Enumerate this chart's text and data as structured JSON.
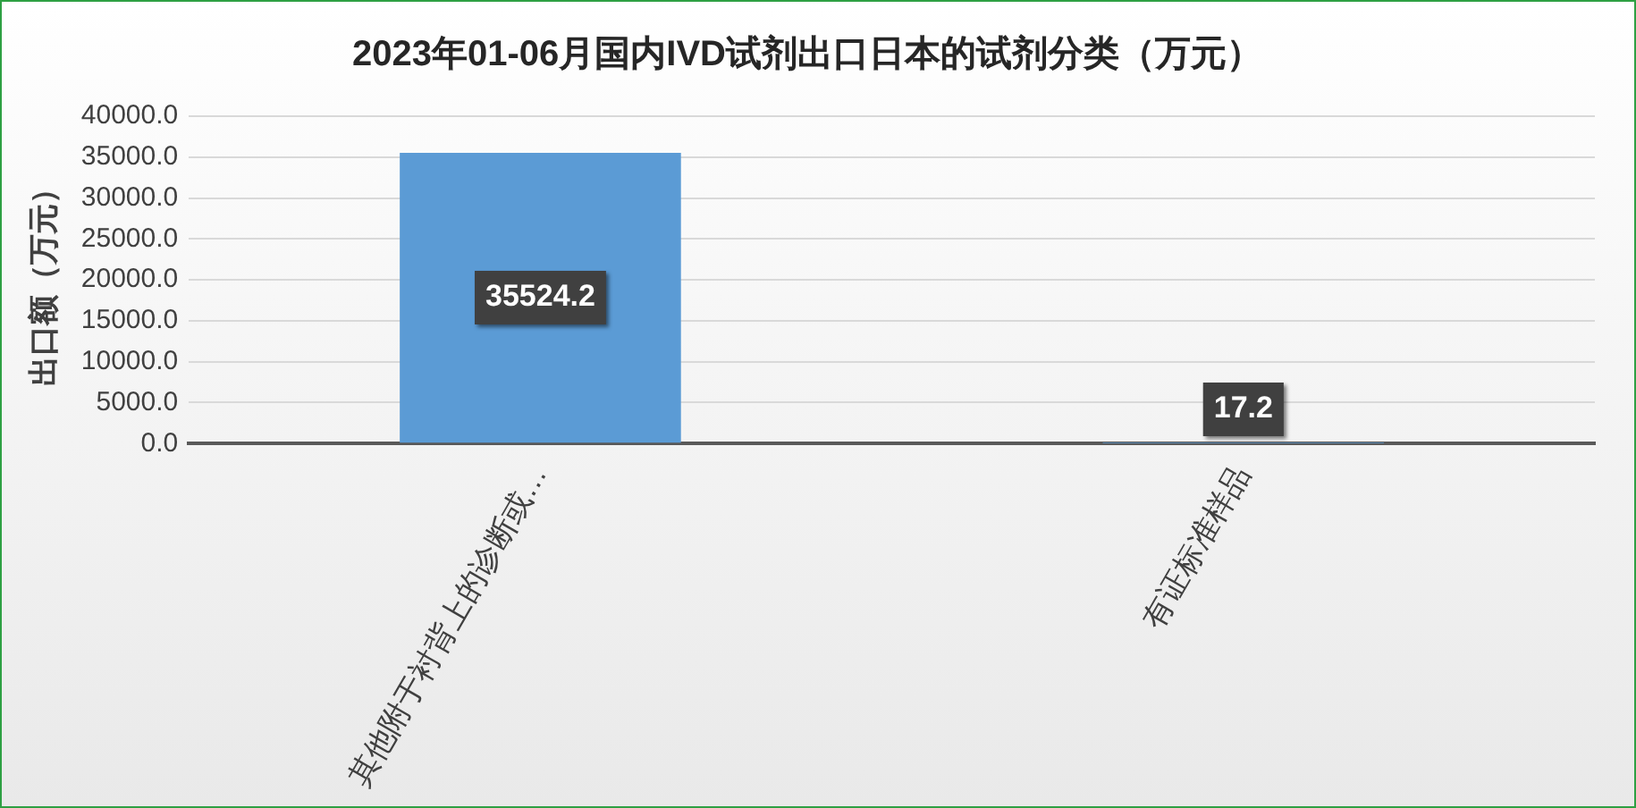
{
  "chart_data": {
    "type": "bar",
    "title": "2023年01-06月国内IVD试剂出口日本的试剂分类（万元）",
    "ylabel": "出口额（万元）",
    "categories": [
      "其他附于衬背上的诊断或…",
      "有证标准样品"
    ],
    "values": [
      35524.2,
      17.2
    ],
    "color": "#5b9bd5",
    "ylim": [
      0,
      40000
    ],
    "yticks": [
      {
        "value": 0,
        "label": "0.0"
      },
      {
        "value": 5000,
        "label": "5000.0"
      },
      {
        "value": 10000,
        "label": "10000.0"
      },
      {
        "value": 15000,
        "label": "15000.0"
      },
      {
        "value": 20000,
        "label": "20000.0"
      },
      {
        "value": 25000,
        "label": "25000.0"
      },
      {
        "value": 30000,
        "label": "30000.0"
      },
      {
        "value": 35000,
        "label": "35000.0"
      },
      {
        "value": 40000,
        "label": "40000.0"
      }
    ],
    "grid": "y",
    "data_labels": true
  }
}
